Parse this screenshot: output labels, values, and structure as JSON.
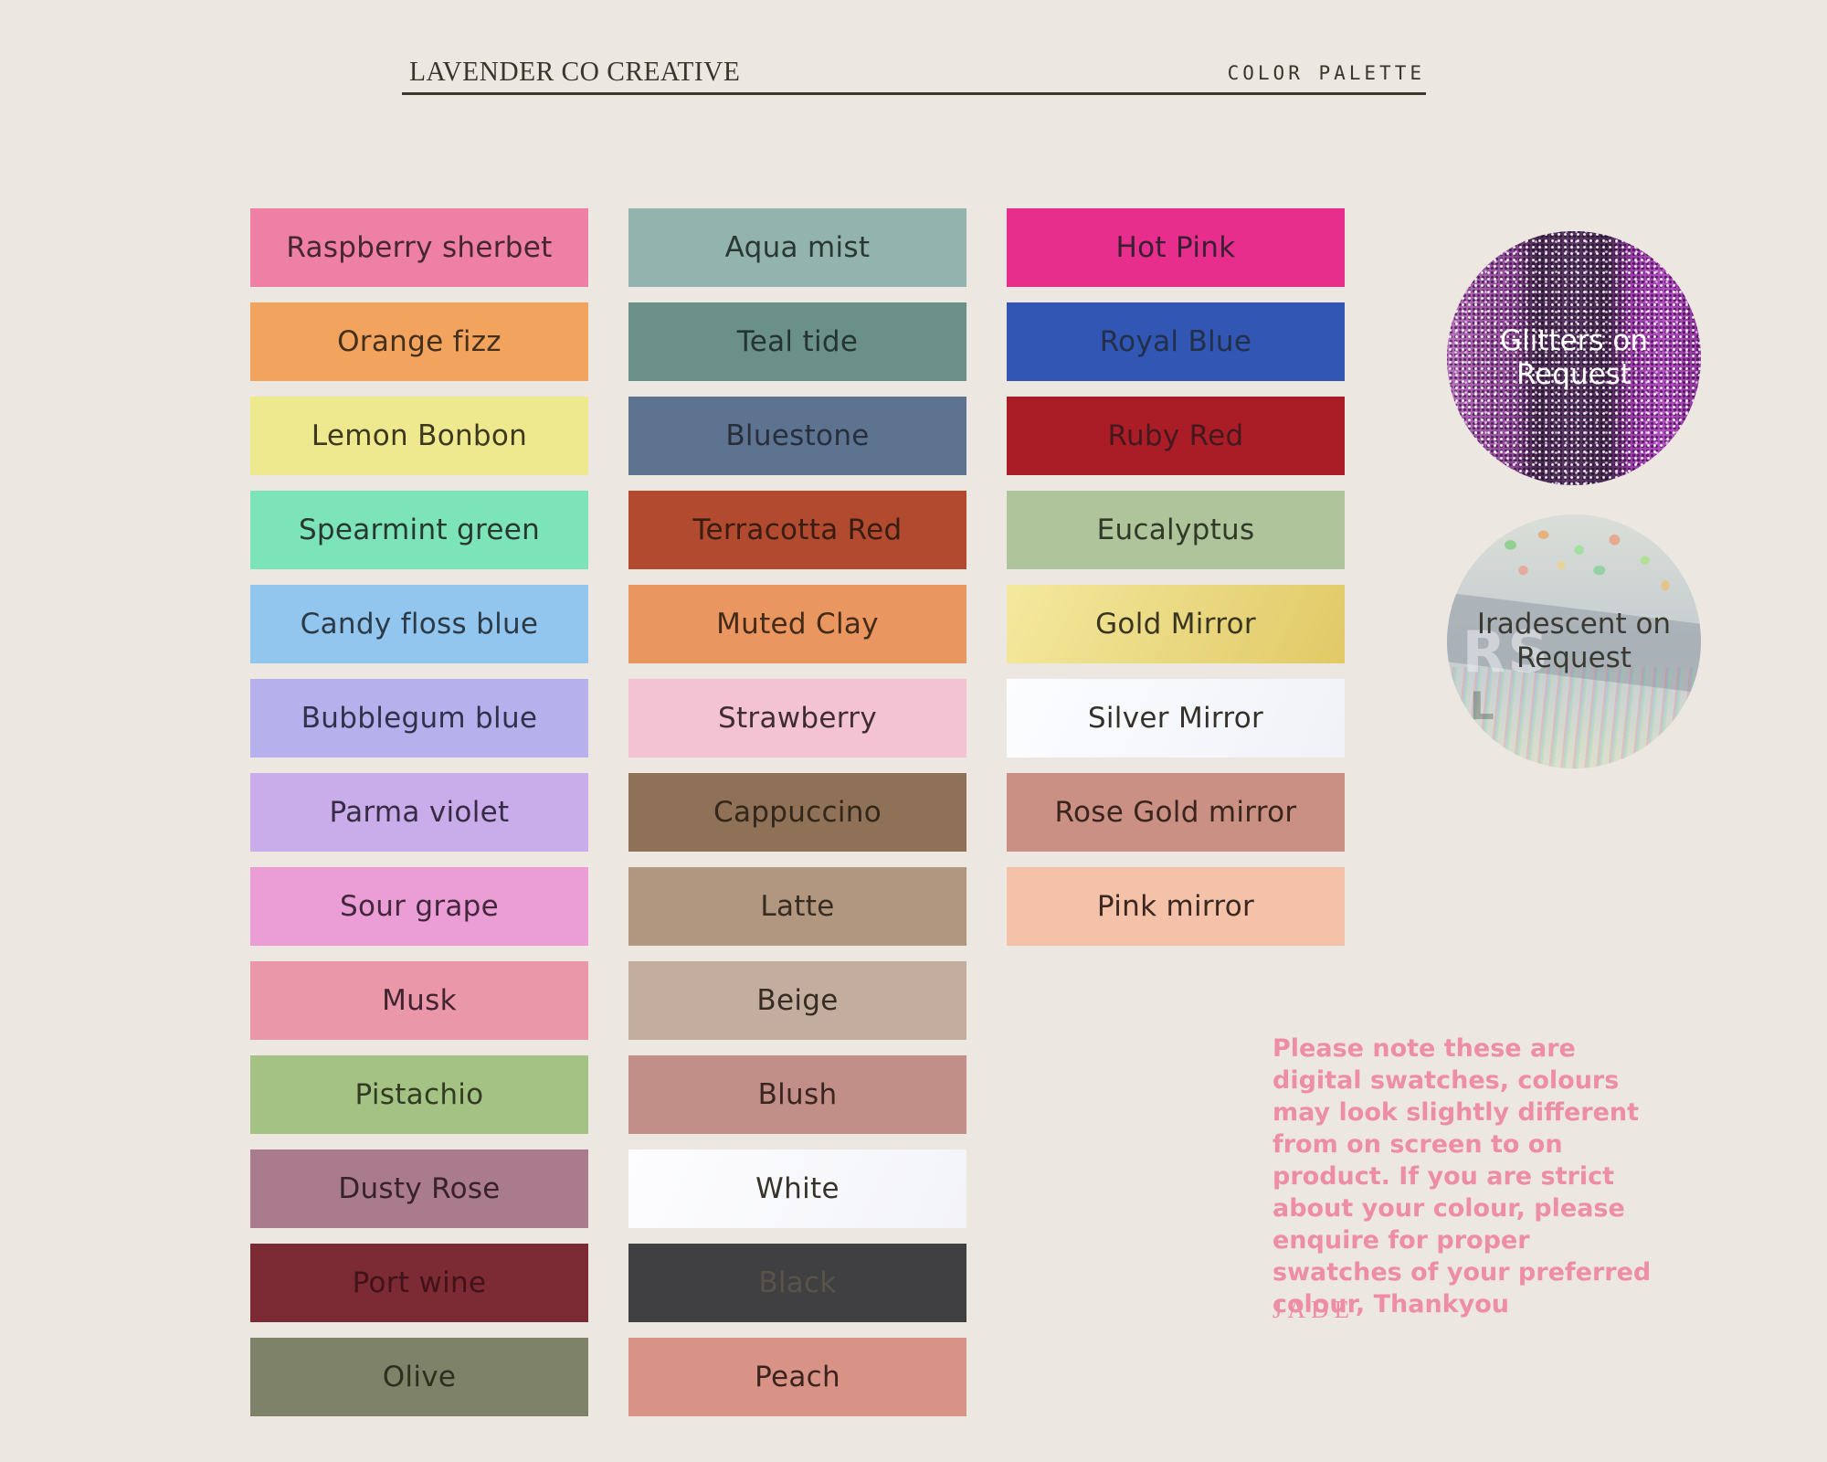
{
  "background": "#ece8e1",
  "header": {
    "brand": "LAVENDER CO CREATIVE",
    "title": "COLOR PALETTE"
  },
  "columns": [
    {
      "swatches": [
        {
          "name": "Raspberry sherbet",
          "color": "#ee7fa5",
          "label_color": "#46262f"
        },
        {
          "name": "Orange fizz",
          "color": "#f2a45f",
          "label_color": "#44301c"
        },
        {
          "name": "Lemon Bonbon",
          "color": "#eee98e",
          "label_color": "#3c391f"
        },
        {
          "name": "Spearmint green",
          "color": "#7de3b9",
          "label_color": "#27392f"
        },
        {
          "name": "Candy floss blue",
          "color": "#93c6ee",
          "label_color": "#2c3a46"
        },
        {
          "name": "Bubblegum blue",
          "color": "#b6b1ed",
          "label_color": "#32304a"
        },
        {
          "name": "Parma violet",
          "color": "#c9adea",
          "label_color": "#372c44"
        },
        {
          "name": "Sour grape",
          "color": "#eb9ed5",
          "label_color": "#43273c"
        },
        {
          "name": "Musk",
          "color": "#e997a9",
          "label_color": "#422430"
        },
        {
          "name": "Pistachio",
          "color": "#a5c285",
          "label_color": "#323c23"
        },
        {
          "name": "Dusty Rose",
          "color": "#a97b8d",
          "label_color": "#38222c"
        },
        {
          "name": "Port wine",
          "color": "#7c2a33",
          "label_color": "#421219"
        },
        {
          "name": "Olive",
          "color": "#7d8268",
          "label_color": "#2c301f"
        }
      ]
    },
    {
      "swatches": [
        {
          "name": "Aqua mist",
          "color": "#93b3ae",
          "label_color": "#2a3835"
        },
        {
          "name": "Teal tide",
          "color": "#6b9089",
          "label_color": "#243430"
        },
        {
          "name": "Bluestone",
          "color": "#5e7390",
          "label_color": "#272f3d"
        },
        {
          "name": "Terracotta Red",
          "color": "#b24a30",
          "label_color": "#391c12"
        },
        {
          "name": "Muted Clay",
          "color": "#e99660",
          "label_color": "#442b18"
        },
        {
          "name": "Strawberry",
          "color": "#f3c3d4",
          "label_color": "#3e2d34"
        },
        {
          "name": "Cappuccino",
          "color": "#8e7156",
          "label_color": "#33261a"
        },
        {
          "name": "Latte",
          "color": "#b29780",
          "label_color": "#382b20"
        },
        {
          "name": "Beige",
          "color": "#c3ad9e",
          "label_color": "#362c24"
        },
        {
          "name": "Blush",
          "color": "#c18f88",
          "label_color": "#3a2520"
        },
        {
          "name": "White",
          "color": "#fdfdff",
          "color2": "#f3f4f8",
          "label_color": "#37332c"
        },
        {
          "name": "Black",
          "color": "#403f41",
          "label_color": "#59544a"
        },
        {
          "name": "Peach",
          "color": "#d99386",
          "label_color": "#3b241e"
        }
      ]
    },
    {
      "swatches": [
        {
          "name": "Hot Pink",
          "color": "#e72e8d",
          "label_color": "#391f33"
        },
        {
          "name": "Royal Blue",
          "color": "#3156b3",
          "label_color": "#22304a"
        },
        {
          "name": "Ruby Red",
          "color": "#aa1d26",
          "label_color": "#44191e"
        },
        {
          "name": "Eucalyptus",
          "color": "#afc49a",
          "label_color": "#303a26"
        },
        {
          "name": "Gold Mirror",
          "color": "#f4e99e",
          "color2": "#e1c966",
          "label_color": "#3a3520"
        },
        {
          "name": "Silver Mirror",
          "color": "#fcfdff",
          "color2": "#f0f2f8",
          "label_color": "#34312b"
        },
        {
          "name": "Rose Gold mirror",
          "color": "#c99083",
          "label_color": "#3a241e"
        },
        {
          "name": "Pink mirror",
          "color": "#f4c1a9",
          "label_color": "#3c2820"
        }
      ]
    }
  ],
  "circles": [
    {
      "label": "Glitters on Request",
      "text_color": "#ffffff",
      "style": "glitter"
    },
    {
      "label": "Iradescent on Request",
      "text_color": "#3a3a33",
      "style": "iridescent",
      "fragments": [
        "RS",
        "L"
      ]
    }
  ],
  "note": {
    "text": "Please note these are digital swatches, colours may look slightly different from on screen to on product. If you are strict about your colour, please enquire for proper swatches of your preferred colour, Thankyou",
    "signature": "JADE",
    "color": "#ee8da6"
  }
}
